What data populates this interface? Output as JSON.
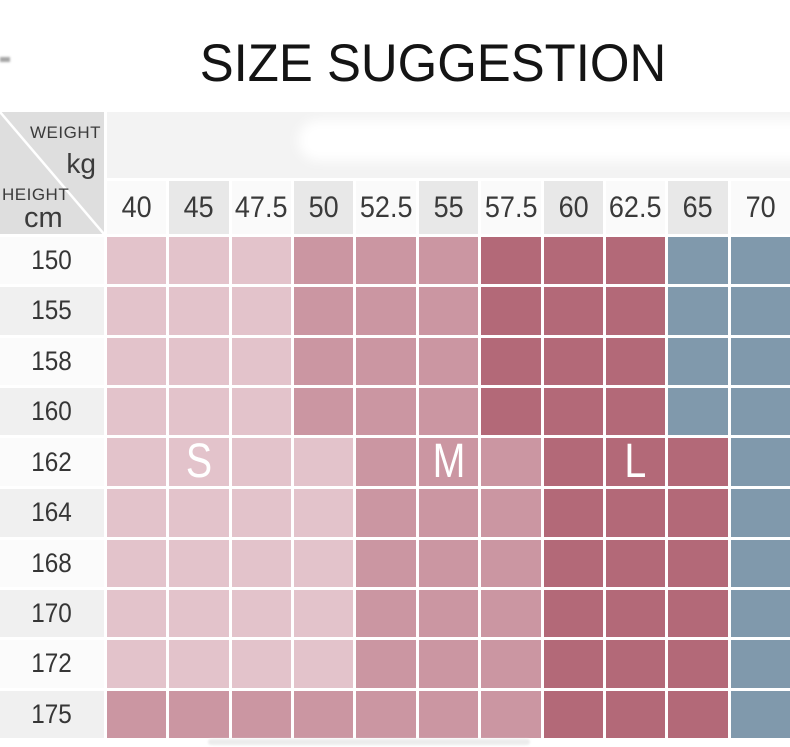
{
  "title": "SIZE SUGGESTION",
  "corner": {
    "top_label": "WEIGHT",
    "top_unit": "kg",
    "left_label": "HEIGHT",
    "left_unit": "cm"
  },
  "colors": {
    "zone_S_light_pink": "#e3c3cb",
    "zone_M_medium_pink": "#cb96a2",
    "zone_L_dark_red": "#b36978",
    "zone_none_blue": "#8099ac",
    "corner_gray": "#dedede",
    "strip_gray": "#f3f3f3",
    "header_light": "#fafafa",
    "header_gray": "#e8e8e8",
    "label_light": "#fbfbfb",
    "label_gray": "#f0f0f0",
    "text_dark": "#3a3a3a"
  },
  "chart_data": {
    "type": "heatmap",
    "title": "SIZE SUGGESTION",
    "xlabel": "WEIGHT kg",
    "ylabel": "HEIGHT cm",
    "weights_kg": [
      "40",
      "45",
      "47.5",
      "50",
      "52.5",
      "55",
      "57.5",
      "60",
      "62.5",
      "65",
      "70"
    ],
    "heights_cm": [
      "150",
      "155",
      "158",
      "160",
      "162",
      "164",
      "168",
      "170",
      "172",
      "175"
    ],
    "zone_color_map": {
      "S": "#e3c3cb",
      "M": "#cb96a2",
      "L": "#b36978",
      "-": "#8099ac"
    },
    "cells": [
      [
        "S",
        "S",
        "S",
        "M",
        "M",
        "M",
        "L",
        "L",
        "L",
        "-",
        "-"
      ],
      [
        "S",
        "S",
        "S",
        "M",
        "M",
        "M",
        "L",
        "L",
        "L",
        "-",
        "-"
      ],
      [
        "S",
        "S",
        "S",
        "M",
        "M",
        "M",
        "L",
        "L",
        "L",
        "-",
        "-"
      ],
      [
        "S",
        "S",
        "S",
        "M",
        "M",
        "M",
        "L",
        "L",
        "L",
        "-",
        "-"
      ],
      [
        "S",
        "S",
        "S",
        "S",
        "M",
        "M",
        "M",
        "L",
        "L",
        "L",
        "-"
      ],
      [
        "S",
        "S",
        "S",
        "S",
        "M",
        "M",
        "M",
        "L",
        "L",
        "L",
        "-"
      ],
      [
        "S",
        "S",
        "S",
        "S",
        "M",
        "M",
        "M",
        "L",
        "L",
        "L",
        "-"
      ],
      [
        "S",
        "S",
        "S",
        "S",
        "M",
        "M",
        "M",
        "L",
        "L",
        "L",
        "-"
      ],
      [
        "S",
        "S",
        "S",
        "S",
        "M",
        "M",
        "M",
        "L",
        "L",
        "L",
        "-"
      ],
      [
        "M",
        "M",
        "M",
        "M",
        "M",
        "M",
        "M",
        "L",
        "L",
        "L",
        "-"
      ]
    ],
    "size_labels": [
      {
        "text": "S",
        "height": "162",
        "weight": "45"
      },
      {
        "text": "M",
        "height": "162",
        "weight": "55"
      },
      {
        "text": "L",
        "height": "162",
        "weight": "62.5"
      }
    ],
    "legend_position": "in-cell",
    "grid": true
  }
}
